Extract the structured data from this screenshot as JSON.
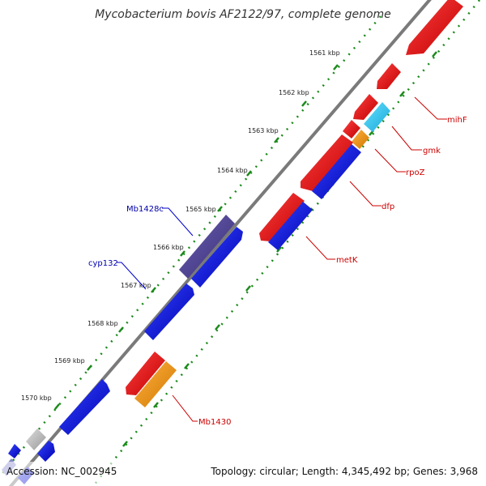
{
  "title": "Mycobacterium bovis AF2122/97, complete genome",
  "footer": {
    "accession": "Accession: NC_002945",
    "summary": "Topology: circular; Length: 4,345,492 bp; Genes: 3,968"
  },
  "ticks": [
    {
      "label": "1561 kbp"
    },
    {
      "label": "1562 kbp"
    },
    {
      "label": "1563 kbp"
    },
    {
      "label": "1564 kbp"
    },
    {
      "label": "1565 kbp"
    },
    {
      "label": "1566 kbp"
    },
    {
      "label": "1567 kbp"
    },
    {
      "label": "1568 kbp"
    },
    {
      "label": "1569 kbp"
    },
    {
      "label": "1570 kbp"
    }
  ],
  "gene_labels": {
    "mihF": "mihF",
    "gmk": "gmk",
    "rpoZ": "rpoZ",
    "dfp": "dfp",
    "metK": "metK",
    "Mb1430": "Mb1430",
    "Mb1428c": "Mb1428c",
    "cyp132": "cyp132"
  },
  "colors": {
    "backbone": "#777777",
    "tick_green": "#1a8a1a",
    "forward_gene": "#e00000",
    "reverse_gene": "#0000e0",
    "rna_gene": "#33ccee",
    "orange_gene": "#f39a10",
    "purple_gene": "#4a3f8c",
    "gray_gene": "#bbbbbb"
  }
}
